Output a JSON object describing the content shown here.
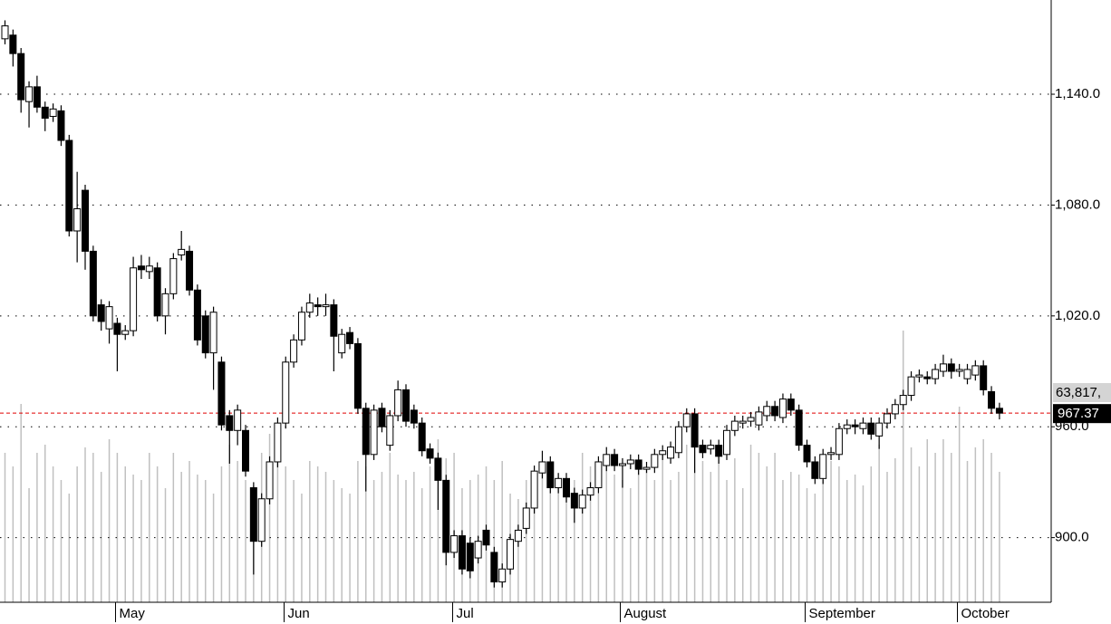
{
  "chart_data": {
    "type": "candlestick",
    "categories": [
      null,
      null,
      null,
      null,
      null,
      null,
      null,
      null,
      null,
      null,
      null,
      null,
      null,
      null,
      "May",
      null,
      null,
      null,
      null,
      null,
      null,
      null,
      null,
      null,
      null,
      null,
      null,
      null,
      null,
      null,
      null,
      null,
      null,
      null,
      null,
      "Jun",
      null,
      null,
      null,
      null,
      null,
      null,
      null,
      null,
      null,
      null,
      null,
      null,
      null,
      null,
      null,
      null,
      null,
      null,
      null,
      null,
      "Jul",
      null,
      null,
      null,
      null,
      null,
      null,
      null,
      null,
      null,
      null,
      null,
      null,
      null,
      null,
      null,
      null,
      null,
      null,
      null,
      null,
      "August",
      null,
      null,
      null,
      null,
      null,
      null,
      null,
      null,
      null,
      null,
      null,
      null,
      null,
      null,
      null,
      null,
      null,
      null,
      null,
      null,
      null,
      null,
      "September",
      null,
      null,
      null,
      null,
      null,
      null,
      null,
      null,
      null,
      null,
      null,
      null,
      null,
      null,
      null,
      null,
      null,
      null,
      "October",
      null,
      null,
      null,
      null,
      null
    ],
    "open": [
      1170,
      1172,
      1162,
      1136,
      1144,
      1133,
      1128,
      1131,
      1115,
      1066,
      1088,
      1055,
      1026,
      1013,
      1016,
      1010,
      1012,
      1047,
      1044,
      1046,
      1020,
      1032,
      1053,
      1055,
      1034,
      1020,
      1000,
      995,
      966,
      958,
      958,
      927,
      898,
      921,
      941,
      962,
      995,
      1007,
      1022,
      1026,
      1025,
      1026,
      1000,
      1011,
      1005,
      970,
      945,
      970,
      950,
      966,
      980,
      969,
      962,
      948,
      943,
      931,
      892,
      901,
      897,
      889,
      904,
      892,
      876,
      883,
      898,
      905,
      916,
      935,
      941,
      927,
      932,
      924,
      916,
      923,
      927,
      939,
      945,
      939,
      940,
      942,
      937,
      938,
      945,
      943,
      946,
      960,
      967,
      950,
      948,
      950,
      945,
      958,
      962,
      963,
      961,
      966,
      971,
      965,
      975,
      969,
      950,
      941,
      932,
      945,
      945,
      959,
      961,
      959,
      962,
      955,
      962,
      967,
      972,
      977,
      987,
      987,
      986,
      990,
      994,
      990,
      986,
      988,
      993,
      979,
      970
    ],
    "high": [
      1180,
      1175,
      1165,
      1147,
      1150,
      1136,
      1135,
      1134,
      1118,
      1098,
      1091,
      1058,
      1029,
      1028,
      1019,
      1015,
      1052,
      1053,
      1052,
      1049,
      1035,
      1054,
      1066,
      1058,
      1037,
      1023,
      1025,
      998,
      969,
      972,
      961,
      930,
      924,
      944,
      965,
      998,
      1010,
      1025,
      1032,
      1030,
      1032,
      1029,
      1013,
      1014,
      1008,
      973,
      972,
      973,
      969,
      985,
      983,
      972,
      965,
      951,
      946,
      934,
      904,
      904,
      900,
      901,
      907,
      895,
      886,
      902,
      907,
      919,
      939,
      947,
      944,
      935,
      935,
      927,
      926,
      930,
      944,
      949,
      948,
      943,
      945,
      945,
      941,
      948,
      950,
      952,
      963,
      970,
      970,
      953,
      953,
      953,
      961,
      966,
      966,
      968,
      971,
      974,
      974,
      978,
      978,
      972,
      953,
      944,
      948,
      949,
      962,
      964,
      964,
      965,
      965,
      965,
      970,
      975,
      980,
      990,
      991,
      990,
      994,
      999,
      997,
      994,
      994,
      996,
      996,
      982,
      973
    ],
    "low": [
      1167,
      1155,
      1130,
      1122,
      1130,
      1120,
      1125,
      1112,
      1063,
      1049,
      1045,
      1017,
      1012,
      1005,
      990,
      1007,
      1009,
      1040,
      1040,
      1017,
      1010,
      1029,
      1050,
      1031,
      1004,
      997,
      980,
      958,
      940,
      950,
      933,
      880,
      895,
      918,
      938,
      959,
      992,
      1004,
      1019,
      1020,
      1020,
      990,
      997,
      1002,
      967,
      925,
      942,
      957,
      947,
      963,
      960,
      959,
      944,
      940,
      915,
      885,
      889,
      880,
      878,
      886,
      893,
      873,
      873,
      880,
      895,
      902,
      913,
      932,
      924,
      924,
      919,
      908,
      913,
      920,
      924,
      936,
      936,
      927,
      937,
      934,
      935,
      935,
      942,
      940,
      943,
      957,
      935,
      943,
      945,
      940,
      942,
      955,
      959,
      960,
      958,
      963,
      963,
      962,
      966,
      947,
      938,
      929,
      929,
      942,
      942,
      956,
      956,
      956,
      953,
      948,
      959,
      964,
      969,
      974,
      984,
      983,
      983,
      987,
      986,
      987,
      983,
      985,
      977,
      967,
      964
    ],
    "close": [
      1177,
      1162,
      1137,
      1144,
      1133,
      1127,
      1132,
      1115,
      1066,
      1078,
      1055,
      1020,
      1017,
      1025,
      1010,
      1012,
      1046,
      1045,
      1047,
      1020,
      1032,
      1051,
      1056,
      1034,
      1007,
      1000,
      1022,
      961,
      958,
      969,
      936,
      898,
      921,
      941,
      962,
      995,
      1007,
      1022,
      1027,
      1025,
      1026,
      1009,
      1010,
      1005,
      970,
      945,
      969,
      960,
      966,
      980,
      963,
      962,
      947,
      943,
      931,
      892,
      901,
      883,
      882,
      898,
      896,
      876,
      883,
      899,
      904,
      916,
      936,
      941,
      927,
      932,
      922,
      916,
      923,
      927,
      941,
      945,
      939,
      940,
      942,
      937,
      938,
      945,
      947,
      949,
      960,
      967,
      949,
      946,
      950,
      944,
      958,
      963,
      963,
      965,
      968,
      971,
      966,
      975,
      969,
      950,
      941,
      932,
      945,
      946,
      959,
      961,
      960,
      962,
      956,
      962,
      967,
      972,
      977,
      987,
      988,
      986,
      991,
      994,
      990,
      991,
      991,
      993,
      980,
      970,
      967.37
    ],
    "volume": [
      55,
      50,
      73,
      42,
      55,
      58,
      50,
      45,
      40,
      50,
      57,
      55,
      48,
      60,
      55,
      50,
      47,
      45,
      55,
      50,
      42,
      55,
      48,
      52,
      47,
      45,
      40,
      50,
      58,
      52,
      45,
      43,
      55,
      62,
      58,
      50,
      45,
      40,
      52,
      50,
      48,
      45,
      42,
      40,
      52,
      50,
      45,
      48,
      55,
      47,
      45,
      48,
      42,
      50,
      60,
      53,
      55,
      42,
      45,
      47,
      50,
      45,
      52,
      40,
      38,
      45,
      42,
      48,
      50,
      46,
      42,
      45,
      55,
      50,
      40,
      52,
      47,
      45,
      42,
      50,
      50,
      45,
      55,
      45,
      48,
      58,
      60,
      52,
      48,
      55,
      45,
      53,
      42,
      58,
      55,
      50,
      55,
      45,
      48,
      47,
      42,
      40,
      45,
      52,
      50,
      45,
      47,
      43,
      50,
      58,
      48,
      53,
      100,
      57,
      50,
      60,
      55,
      60,
      55,
      72,
      52,
      57,
      60,
      55,
      48
    ],
    "volume_lim": [
      0,
      100
    ],
    "volume_label": "63,817,",
    "ylim": [
      865,
      1191
    ],
    "yticks": [
      {
        "value": 900,
        "label": "900.0"
      },
      {
        "value": 960,
        "label": "960.0"
      },
      {
        "value": 1020,
        "label": "1,020.0"
      },
      {
        "value": 1080,
        "label": "1,080.0"
      },
      {
        "value": 1140,
        "label": "1,140.0"
      }
    ],
    "grid": true,
    "up_color": "#ffffff",
    "down_color": "#000000",
    "volume_color": "#c0c0c0",
    "last_line_color": "#e00000"
  }
}
